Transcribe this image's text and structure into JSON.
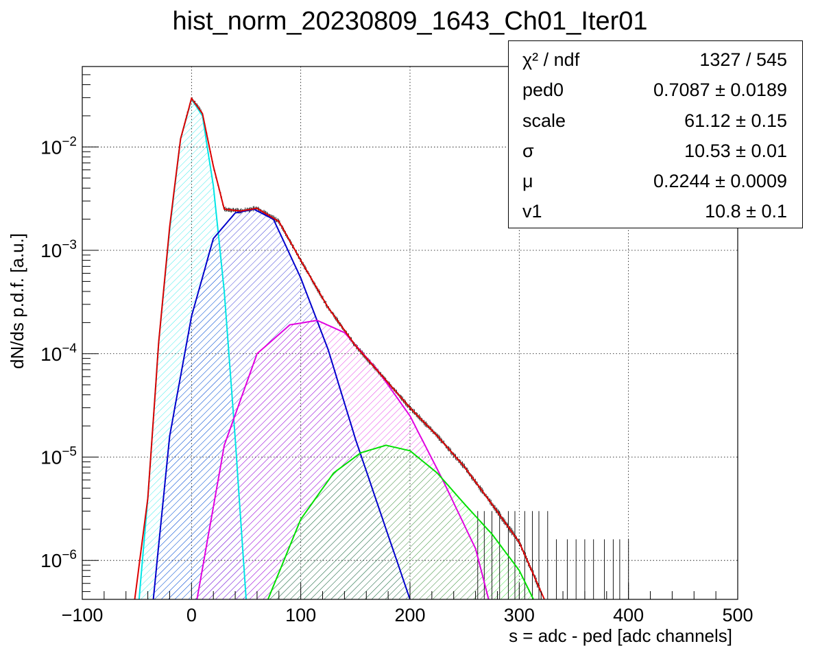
{
  "title": "hist_norm_20230809_1643_Ch01_Iter01",
  "chart_data": {
    "type": "line",
    "title": "hist_norm_20230809_1643_Ch01_Iter01",
    "xlabel": "s = adc - ped [adc channels]",
    "ylabel": "dN/ds p.d.f. [a.u.]",
    "xlim": [
      -100,
      500
    ],
    "ylim": [
      4.2e-07,
      0.06
    ],
    "yscale": "log",
    "grid": true,
    "x_ticks": [
      "−100",
      "0",
      "100",
      "200",
      "300",
      "400",
      "500"
    ],
    "y_ticks": [
      {
        "base": "10",
        "exp": "−6",
        "value": 1e-06
      },
      {
        "base": "10",
        "exp": "−5",
        "value": 1e-05
      },
      {
        "base": "10",
        "exp": "−4",
        "value": 0.0001
      },
      {
        "base": "10",
        "exp": "−3",
        "value": 0.001
      },
      {
        "base": "10",
        "exp": "−2",
        "value": 0.01
      }
    ],
    "series": [
      {
        "color": "#00e5e5",
        "points": [
          [
            -48,
            4.2e-07
          ],
          [
            -40,
            4e-06
          ],
          [
            -30,
            0.00013
          ],
          [
            -20,
            0.0016
          ],
          [
            -10,
            0.012
          ],
          [
            0,
            0.029
          ],
          [
            10,
            0.02
          ],
          [
            20,
            0.0042
          ],
          [
            30,
            0.0004
          ],
          [
            40,
            1.5e-05
          ],
          [
            50,
            4.2e-07
          ]
        ]
      },
      {
        "color": "#0000cc",
        "points": [
          [
            -35,
            4.2e-07
          ],
          [
            -20,
            1.6e-05
          ],
          [
            0,
            0.00023
          ],
          [
            20,
            0.0013
          ],
          [
            40,
            0.0023
          ],
          [
            57,
            0.0025
          ],
          [
            75,
            0.002
          ],
          [
            100,
            0.00054
          ],
          [
            125,
            0.00011
          ],
          [
            150,
            1.5e-05
          ],
          [
            175,
            2.5e-06
          ],
          [
            200,
            4.2e-07
          ]
        ]
      },
      {
        "color": "#e000e0",
        "points": [
          [
            5,
            4.2e-07
          ],
          [
            30,
            1.3e-05
          ],
          [
            60,
            0.0001
          ],
          [
            90,
            0.00019
          ],
          [
            115,
            0.00021
          ],
          [
            140,
            0.00016
          ],
          [
            170,
            7e-05
          ],
          [
            200,
            2.5e-05
          ],
          [
            230,
            6e-06
          ],
          [
            260,
            1.3e-06
          ],
          [
            272,
            4.2e-07
          ]
        ]
      },
      {
        "color": "#00e000",
        "points": [
          [
            70,
            4.2e-07
          ],
          [
            100,
            2.5e-06
          ],
          [
            130,
            7e-06
          ],
          [
            155,
            1.1e-05
          ],
          [
            178,
            1.3e-05
          ],
          [
            200,
            1.15e-05
          ],
          [
            225,
            7e-06
          ],
          [
            250,
            3.5e-06
          ],
          [
            275,
            1.8e-06
          ],
          [
            300,
            8e-07
          ],
          [
            313,
            4.2e-07
          ]
        ]
      },
      {
        "color": "#dd0000",
        "points": [
          [
            -52,
            4.2e-07
          ],
          [
            -40,
            4e-06
          ],
          [
            -30,
            0.00013
          ],
          [
            -20,
            0.0017
          ],
          [
            -10,
            0.012
          ],
          [
            0,
            0.0295
          ],
          [
            10,
            0.021
          ],
          [
            20,
            0.0065
          ],
          [
            30,
            0.0025
          ],
          [
            45,
            0.0024
          ],
          [
            60,
            0.00255
          ],
          [
            80,
            0.0019
          ],
          [
            100,
            0.0008
          ],
          [
            125,
            0.00028
          ],
          [
            150,
            0.00012
          ],
          [
            175,
            6e-05
          ],
          [
            200,
            3e-05
          ],
          [
            225,
            1.6e-05
          ],
          [
            250,
            8e-06
          ],
          [
            275,
            3.5e-06
          ],
          [
            300,
            1.5e-06
          ],
          [
            323,
            4.2e-07
          ]
        ]
      }
    ],
    "hatched_fills": [
      "#00e5e5",
      "#0000cc",
      "#e000e0",
      "#00e000"
    ]
  },
  "stats_box": {
    "rows": [
      {
        "name": "χ² / ndf",
        "value": "1327 / 545"
      },
      {
        "name": "ped0",
        "value": "0.7087 ± 0.0189"
      },
      {
        "name": "scale",
        "value": "61.12 ± 0.15"
      },
      {
        "name": "σ",
        "value": "10.53 ± 0.01"
      },
      {
        "name": "μ",
        "value": "0.2244 ± 0.0009"
      },
      {
        "name": "v1",
        "value": "10.8 ± 0.1"
      }
    ]
  }
}
